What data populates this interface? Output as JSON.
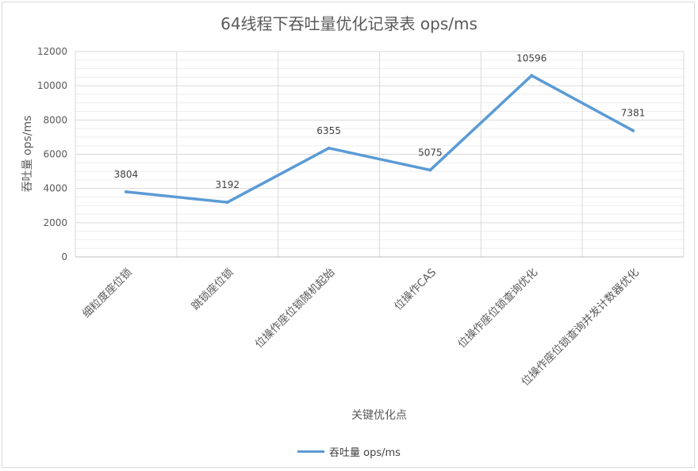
{
  "chart_data": {
    "type": "line",
    "title": "64线程下吞吐量优化记录表 ops/ms",
    "xlabel": "关键优化点",
    "ylabel": "吞吐量 ops/ms",
    "categories": [
      "细粒度座位锁",
      "跳锁座位锁",
      "位操作座位锁随机起始",
      "位操作CAS",
      "位操作座位锁查询优化",
      "位操作座位锁查询并发计数器优化"
    ],
    "series": [
      {
        "name": "吞吐量 ops/ms",
        "values": [
          3804,
          3192,
          6355,
          5075,
          10596,
          7381
        ],
        "color": "#5b9bd5"
      }
    ],
    "ylim": [
      0,
      12000
    ],
    "yticks": [
      0,
      2000,
      4000,
      6000,
      8000,
      10000,
      12000
    ],
    "grid": true,
    "legend_position": "bottom"
  }
}
